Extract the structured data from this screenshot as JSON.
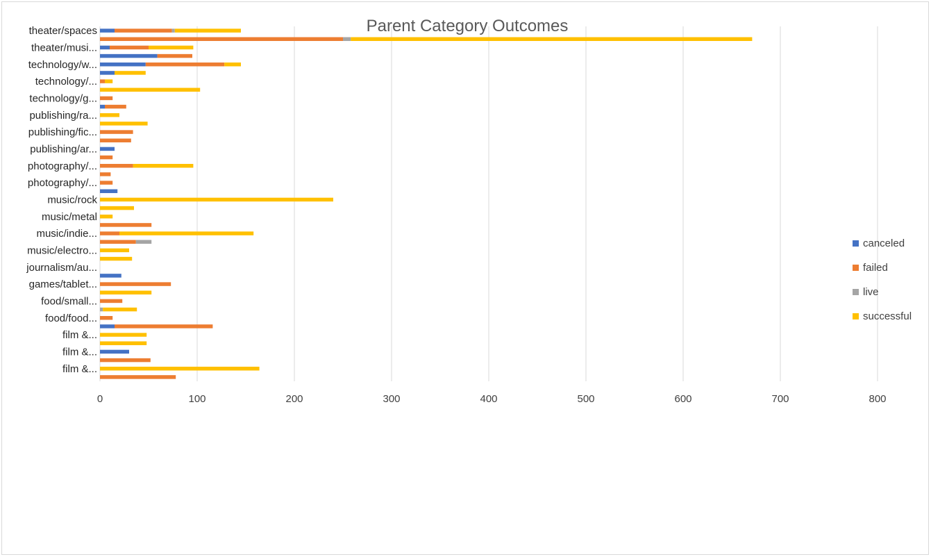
{
  "chart_data": {
    "type": "bar",
    "orientation": "horizontal",
    "stacked": true,
    "title": "Parent Category Outcomes",
    "xlim": [
      0,
      800
    ],
    "x_ticks": [
      0,
      100,
      200,
      300,
      400,
      500,
      600,
      700,
      800
    ],
    "grid": true,
    "legend_position": "right",
    "category_labels_shown": [
      "theater/spaces",
      "theater/musi...",
      "technology/w...",
      "technology/...",
      "technology/g...",
      "publishing/ra...",
      "publishing/fic...",
      "publishing/ar...",
      "photography/...",
      "photography/...",
      "music/rock",
      "music/metal",
      "music/indie...",
      "music/electro...",
      "journalism/au...",
      "games/tablet...",
      "food/small...",
      "food/food...",
      "film &...",
      "film &...",
      "film &..."
    ],
    "series": [
      {
        "name": "canceled",
        "color": "#4472C4",
        "values": [
          15,
          0,
          10,
          59,
          47,
          15,
          0,
          0,
          0,
          5,
          0,
          0,
          0,
          0,
          15,
          0,
          0,
          0,
          0,
          18,
          0,
          0,
          0,
          0,
          0,
          0,
          0,
          0,
          0,
          22,
          0,
          0,
          0,
          0,
          0,
          15,
          0,
          0,
          30,
          0,
          0,
          0
        ]
      },
      {
        "name": "failed",
        "color": "#ED7D31",
        "values": [
          59,
          250,
          40,
          36,
          81,
          0,
          5,
          0,
          13,
          22,
          0,
          0,
          34,
          32,
          0,
          13,
          34,
          11,
          13,
          0,
          0,
          0,
          0,
          53,
          20,
          37,
          0,
          0,
          0,
          0,
          73,
          0,
          23,
          0,
          13,
          101,
          0,
          0,
          0,
          52,
          0,
          78
        ]
      },
      {
        "name": "live",
        "color": "#A5A5A5",
        "values": [
          3,
          8,
          0,
          0,
          0,
          0,
          0,
          0,
          0,
          0,
          0,
          0,
          0,
          0,
          0,
          0,
          0,
          0,
          0,
          0,
          0,
          0,
          0,
          0,
          0,
          16,
          0,
          0,
          0,
          0,
          0,
          0,
          0,
          3,
          0,
          0,
          0,
          0,
          0,
          0,
          0,
          0
        ]
      },
      {
        "name": "successful",
        "color": "#FFC000",
        "values": [
          68,
          413,
          46,
          0,
          17,
          32,
          8,
          103,
          0,
          0,
          20,
          49,
          0,
          0,
          0,
          0,
          62,
          0,
          0,
          0,
          240,
          35,
          13,
          0,
          138,
          0,
          30,
          33,
          0,
          0,
          0,
          53,
          0,
          35,
          0,
          0,
          48,
          48,
          0,
          0,
          164,
          0
        ]
      }
    ]
  }
}
